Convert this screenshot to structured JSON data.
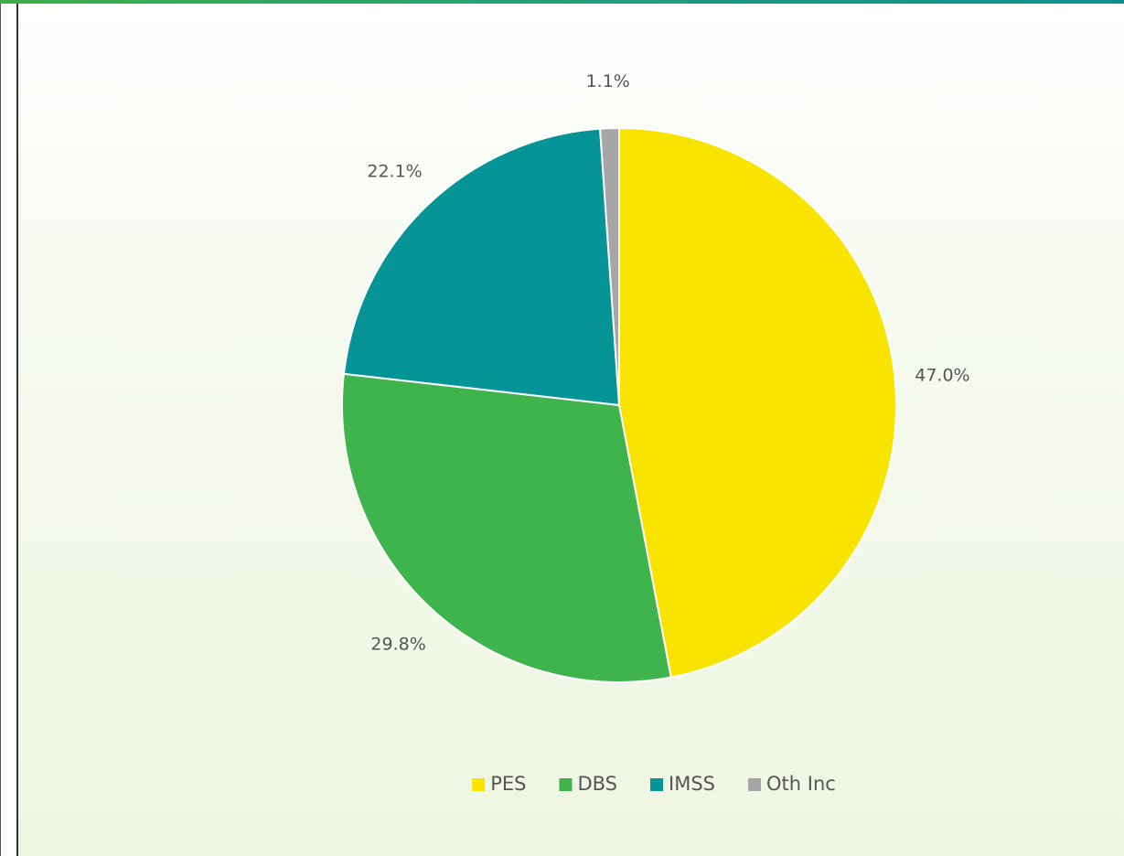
{
  "chart_data": {
    "type": "pie",
    "categories": [
      "PES",
      "DBS",
      "IMSS",
      "Oth Inc"
    ],
    "values": [
      47.0,
      29.8,
      22.1,
      1.1
    ],
    "value_labels": [
      "47.0%",
      "29.8%",
      "22.1%",
      "1.1%"
    ],
    "colors": [
      "#f9e400",
      "#3fb34c",
      "#069497",
      "#a6a6a6"
    ],
    "start_angle": "12 o'clock",
    "direction": "clockwise",
    "legend_position": "bottom",
    "title": ""
  },
  "colors": {
    "top_strip": "#2aa66e",
    "panel_background": "#eef6e2"
  }
}
